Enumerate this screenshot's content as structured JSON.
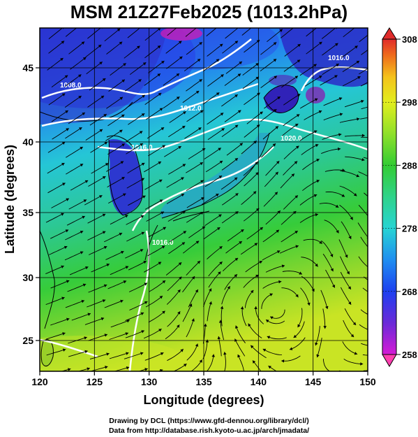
{
  "title": "MSM 21Z27Feb2025 (1013.2hPa)",
  "x_axis": {
    "label": "Longitude (degrees)",
    "ticks": [
      120,
      125,
      130,
      135,
      140,
      145,
      150
    ]
  },
  "y_axis": {
    "label": "Latitude  (degrees)",
    "ticks": [
      25,
      30,
      35,
      40,
      45
    ]
  },
  "colorbar": {
    "ticks": [
      258,
      268,
      278,
      288,
      298,
      308
    ],
    "colors": [
      "#d51ad5",
      "#6a2ad8",
      "#1e40f0",
      "#1f8ef0",
      "#27d4d4",
      "#2fd38a",
      "#33cc33",
      "#8fe02a",
      "#e2ee1e",
      "#f4c21b",
      "#ee6a1c",
      "#e02b2b"
    ]
  },
  "contours": {
    "labels": [
      "1016.0",
      "1008.0",
      "1012.0",
      "1016.0",
      "1020.0",
      "1016.0"
    ]
  },
  "credits": {
    "line1": "Drawing by DCL (https://www.gfd-dennou.org/library/dcl/)",
    "line2": "Data from http://database.rish.kyoto-u.ac.jp/arch/jmadata/"
  }
}
